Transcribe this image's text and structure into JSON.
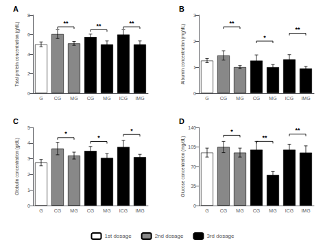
{
  "chart_data": [
    {
      "type": "bar",
      "title": "A",
      "ylabel": "Total protein concentration (g/dL)",
      "categories": [
        "G",
        "CG",
        "MG",
        "CG",
        "MG",
        "ICG",
        "IMG"
      ],
      "series": [
        {
          "name": "1st dosage",
          "color": "white",
          "values": [
            5.0,
            null,
            null,
            null,
            null,
            null,
            null
          ],
          "errors": [
            0.25,
            null,
            null,
            null,
            null,
            null,
            null
          ]
        },
        {
          "name": "2nd dosage",
          "color": "#888888",
          "values": [
            null,
            6.05,
            5.1,
            null,
            null,
            null,
            null
          ],
          "errors": [
            null,
            0.45,
            0.2,
            null,
            null,
            null,
            null
          ]
        },
        {
          "name": "3rd dosage",
          "color": "black",
          "values": [
            null,
            null,
            null,
            5.75,
            5.0,
            6.0,
            5.0
          ],
          "errors": [
            null,
            null,
            null,
            0.3,
            0.35,
            0.5,
            0.35
          ]
        }
      ],
      "ylim": [
        0,
        8
      ],
      "yticks": [
        0,
        2,
        4,
        6,
        8
      ],
      "grid": false,
      "legend": "bottom",
      "annotations": [
        {
          "x1": 1,
          "x2": 2,
          "y": 6.8,
          "label": "**"
        },
        {
          "x1": 3,
          "x2": 4,
          "y": 6.5,
          "label": "**"
        },
        {
          "x1": 5,
          "x2": 6,
          "y": 6.8,
          "label": "**"
        }
      ]
    },
    {
      "type": "bar",
      "title": "B",
      "ylabel": "Albumin concentration (mg/dL)",
      "categories": [
        "G",
        "CG",
        "MG",
        "CG",
        "MG",
        "ICG",
        "IMG"
      ],
      "series": [
        {
          "name": "1st dosage",
          "color": "white",
          "values": [
            1.25,
            null,
            null,
            null,
            null,
            null,
            null
          ],
          "errors": [
            0.08,
            null,
            null,
            null,
            null,
            null,
            null
          ]
        },
        {
          "name": "2nd dosage",
          "color": "#888888",
          "values": [
            null,
            1.45,
            1.0,
            null,
            null,
            null,
            null
          ],
          "errors": [
            null,
            0.18,
            0.06,
            null,
            null,
            null,
            null
          ]
        },
        {
          "name": "3rd dosage",
          "color": "black",
          "values": [
            null,
            null,
            null,
            1.25,
            1.0,
            1.3,
            0.95
          ],
          "errors": [
            null,
            null,
            null,
            0.22,
            0.1,
            0.18,
            0.08
          ]
        }
      ],
      "ylim": [
        0,
        3
      ],
      "yticks": [
        0,
        1,
        2,
        3
      ],
      "grid": false,
      "annotations": [
        {
          "x1": 1,
          "x2": 2,
          "y": 2.55,
          "label": "**"
        },
        {
          "x1": 3,
          "x2": 4,
          "y": 2.0,
          "label": "*"
        },
        {
          "x1": 5,
          "x2": 6,
          "y": 2.3,
          "label": "**"
        }
      ]
    },
    {
      "type": "bar",
      "title": "C",
      "ylabel": "Globulin concentration (g/dL)",
      "categories": [
        "G",
        "CG",
        "MG",
        "CG",
        "MG",
        "ICG",
        "IMG"
      ],
      "series": [
        {
          "name": "1st dosage",
          "color": "white",
          "values": [
            2.75,
            null,
            null,
            null,
            null,
            null,
            null
          ],
          "errors": [
            0.2,
            null,
            null,
            null,
            null,
            null,
            null
          ]
        },
        {
          "name": "2nd dosage",
          "color": "#888888",
          "values": [
            null,
            3.65,
            3.2,
            null,
            null,
            null,
            null
          ],
          "errors": [
            null,
            0.4,
            0.22,
            null,
            null,
            null,
            null
          ]
        },
        {
          "name": "3rd dosage",
          "color": "black",
          "values": [
            null,
            null,
            null,
            3.5,
            3.05,
            3.75,
            3.1
          ],
          "errors": [
            null,
            null,
            null,
            0.28,
            0.28,
            0.42,
            0.18
          ]
        }
      ],
      "ylim": [
        0,
        5
      ],
      "yticks": [
        0,
        1,
        2,
        3,
        4,
        5
      ],
      "grid": false,
      "annotations": [
        {
          "x1": 1,
          "x2": 2,
          "y": 4.35,
          "label": "*"
        },
        {
          "x1": 3,
          "x2": 4,
          "y": 4.1,
          "label": "*"
        },
        {
          "x1": 5,
          "x2": 6,
          "y": 4.55,
          "label": "*"
        }
      ]
    },
    {
      "type": "bar",
      "title": "D",
      "ylabel": "Glucose concentration (mg/dL)",
      "categories": [
        "G",
        "CG",
        "MG",
        "CG",
        "MG",
        "ICG",
        "IMG"
      ],
      "series": [
        {
          "name": "1st dosage",
          "color": "white",
          "values": [
            95,
            null,
            null,
            null,
            null,
            null,
            null
          ],
          "errors": [
            8,
            null,
            null,
            null,
            null,
            null,
            null
          ]
        },
        {
          "name": "2nd dosage",
          "color": "#888888",
          "values": [
            null,
            105,
            95,
            null,
            null,
            null,
            null
          ],
          "errors": [
            null,
            10,
            8,
            null,
            null,
            null,
            null
          ]
        },
        {
          "name": "3rd dosage",
          "color": "black",
          "values": [
            null,
            null,
            null,
            100,
            55,
            100,
            95
          ],
          "errors": [
            null,
            null,
            null,
            15,
            6,
            10,
            12
          ]
        }
      ],
      "ylim": [
        0,
        140
      ],
      "yticks": [
        0,
        35,
        70,
        105,
        140
      ],
      "grid": false,
      "annotations": [
        {
          "x1": 1,
          "x2": 2,
          "y": 126,
          "label": "*"
        },
        {
          "x1": 3,
          "x2": 4,
          "y": 115,
          "label": "**"
        },
        {
          "x1": 5,
          "x2": 6,
          "y": 128,
          "label": "**"
        }
      ]
    }
  ]
}
